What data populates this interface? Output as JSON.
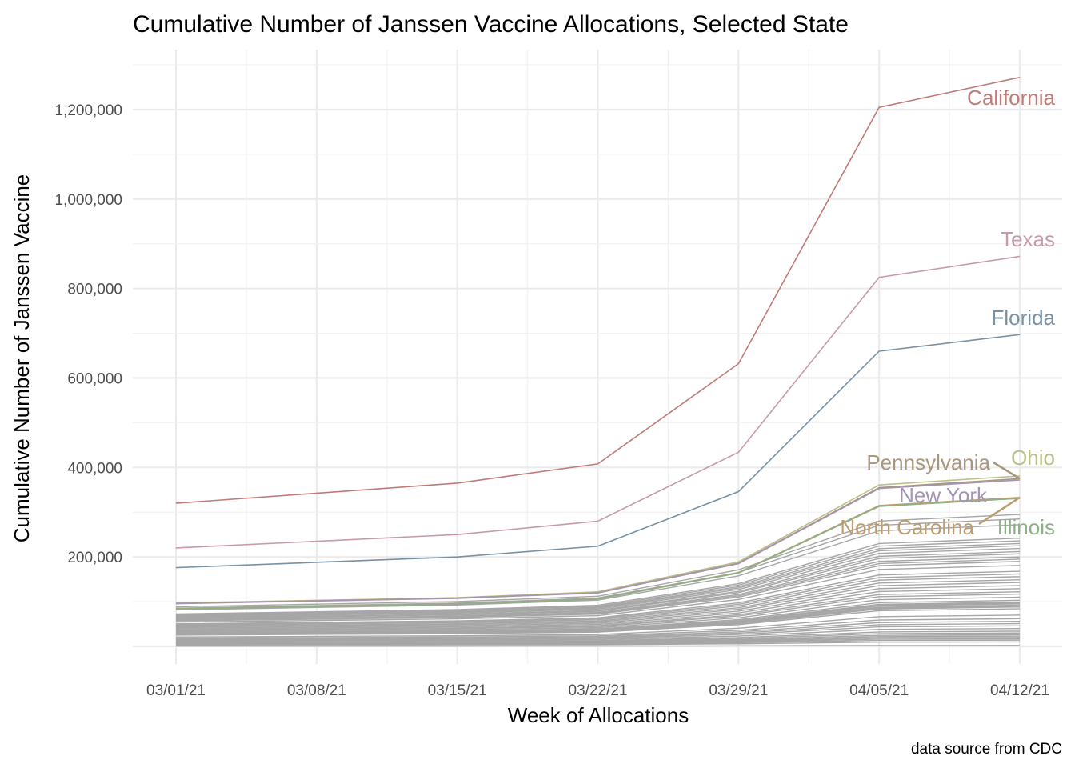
{
  "chart_data": {
    "type": "line",
    "title": "Cumulative Number of Janssen Vaccine Allocations, Selected State",
    "xlabel": "Week of Allocations",
    "ylabel": "Cumulative Number of Janssen Vaccine",
    "caption": "data source from CDC",
    "x": [
      "03/01/21",
      "03/08/21",
      "03/15/21",
      "03/22/21",
      "03/29/21",
      "04/05/21",
      "04/12/21"
    ],
    "ylim": [
      -50000,
      1300000
    ],
    "y_ticks": [
      200000,
      400000,
      600000,
      800000,
      1000000,
      1200000
    ],
    "y_tick_labels": [
      "200,000",
      "400,000",
      "600,000",
      "800,000",
      "1,000,000",
      "1,200,000"
    ],
    "grid": true,
    "legend": "none",
    "highlighted_series": [
      {
        "name": "California",
        "color": "#c07b78",
        "values": [
          320000,
          null,
          365000,
          408000,
          632000,
          1205000,
          1272000
        ]
      },
      {
        "name": "Texas",
        "color": "#c69ba7",
        "values": [
          220000,
          null,
          250000,
          280000,
          434000,
          825000,
          872000
        ]
      },
      {
        "name": "Florida",
        "color": "#7891a5",
        "values": [
          176000,
          null,
          200000,
          224000,
          346000,
          660000,
          697000
        ]
      },
      {
        "name": "Ohio",
        "color": "#bcc08b",
        "values": [
          97000,
          null,
          109000,
          122000,
          189000,
          361000,
          381000
        ]
      },
      {
        "name": "Pennsylvania",
        "color": "#a8967e",
        "values": [
          96000,
          null,
          108000,
          120000,
          186000,
          355000,
          375000
        ]
      },
      {
        "name": "New York",
        "color": "#a595b4",
        "values": [
          95500,
          null,
          107500,
          119500,
          185000,
          353000,
          372000
        ]
      },
      {
        "name": "North Carolina",
        "color": "#bc9d6f",
        "values": [
          84000,
          null,
          95000,
          106000,
          165000,
          315000,
          333000
        ]
      },
      {
        "name": "Illinois",
        "color": "#8db087",
        "values": [
          83500,
          null,
          94500,
          105500,
          164000,
          313000,
          331000
        ]
      }
    ],
    "background_series_color": "#a6a6a6",
    "background_series_final_values": [
      295000,
      285000,
      272000,
      242000,
      236000,
      230000,
      225000,
      219000,
      212000,
      207000,
      200000,
      195000,
      190000,
      181000,
      168000,
      162000,
      156000,
      149000,
      143000,
      136000,
      129000,
      122000,
      117000,
      110000,
      103000,
      99000,
      97000,
      95000,
      92000,
      90000,
      88000,
      84000,
      70000,
      62000,
      56000,
      51000,
      46000,
      40000,
      34000,
      30000,
      26000,
      23000,
      20000,
      17000,
      14000,
      10000,
      2000
    ]
  }
}
